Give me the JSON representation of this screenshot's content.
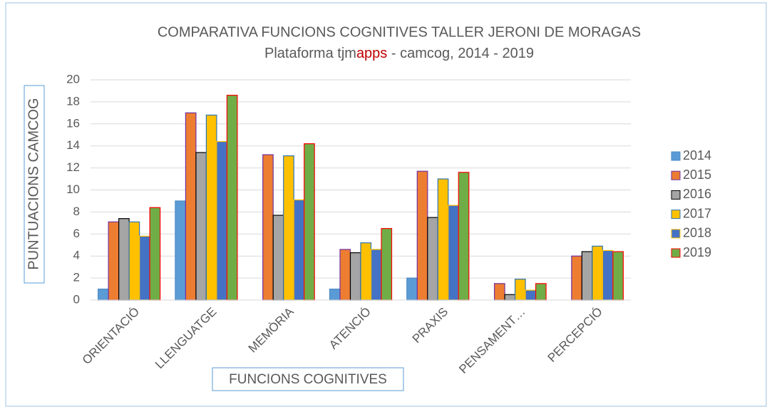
{
  "chart_data": {
    "type": "bar",
    "title": "COMPARATIVA FUNCIONS COGNITIVES TALLER JERONI DE MORAGAS",
    "subtitle": [
      {
        "text": "Plataforma tjm"
      },
      {
        "text": "apps",
        "color": "#c00000"
      },
      {
        "text": " - camcog, 2014 - 2019"
      }
    ],
    "y_label": "PUNTUACIONS CAMCOG",
    "x_label": "FUNCIONS COGNITIVES",
    "categories": [
      "ORIENTACIÓ",
      "LLENGUATGE",
      "MEMÒRIA",
      "ATENCIÓ",
      "PRAXIS",
      "PENSAMENT…",
      "PERCEPCIÓ"
    ],
    "series": [
      {
        "name": "2014",
        "color": "#5b9bd5",
        "border": "#4a8ac4",
        "values": [
          1,
          9,
          0,
          1,
          2,
          0,
          0
        ]
      },
      {
        "name": "2015",
        "color": "#ed7d31",
        "border": "#7030a0",
        "values": [
          7.1,
          17,
          13.2,
          4.6,
          11.7,
          1.5,
          4
        ]
      },
      {
        "name": "2016",
        "color": "#a5a5a5",
        "border": "#000000",
        "values": [
          7.4,
          13.4,
          7.7,
          4.3,
          7.5,
          0.5,
          4.4
        ]
      },
      {
        "name": "2017",
        "color": "#ffc000",
        "border": "#2e75b6",
        "values": [
          7.1,
          16.8,
          13.1,
          5.2,
          11,
          1.9,
          4.9
        ]
      },
      {
        "name": "2018",
        "color": "#4472c4",
        "border": "#ffc000",
        "values": [
          5.8,
          14.4,
          9.1,
          4.6,
          8.6,
          0.9,
          4.5
        ]
      },
      {
        "name": "2019",
        "color": "#70ad47",
        "border": "#ff0000",
        "values": [
          8.4,
          18.6,
          14.2,
          6.5,
          11.6,
          1.5,
          4.4
        ]
      }
    ],
    "ylim": [
      0,
      20
    ],
    "yticks": [
      0,
      2,
      4,
      6,
      8,
      10,
      12,
      14,
      16,
      18,
      20
    ],
    "grid": true,
    "legend": "right"
  }
}
